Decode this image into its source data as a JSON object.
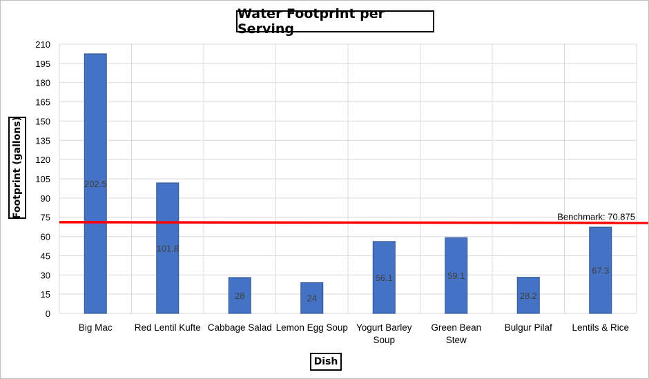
{
  "chart_data": {
    "type": "bar",
    "title": "Water Footprint per Serving",
    "xlabel": "Dish",
    "ylabel": "Footprint (gallons)",
    "categories": [
      "Big Mac",
      "Red Lentil Kufte",
      "Cabbage Salad",
      "Lemon Egg Soup",
      "Yogurt Barley Soup",
      "Green Bean Stew",
      "Bulgur Pilaf",
      "Lentils & Rice"
    ],
    "values": [
      202.5,
      101.8,
      28,
      24,
      56.1,
      59.1,
      28.2,
      67.3
    ],
    "data_labels": [
      "202.5",
      "101.8",
      "28",
      "24",
      "56.1",
      "59.1",
      "28.2",
      "67.3"
    ],
    "ylim": [
      0,
      210
    ],
    "yticks": [
      0,
      15,
      30,
      45,
      60,
      75,
      90,
      105,
      120,
      135,
      150,
      165,
      180,
      195,
      210
    ],
    "grid": true,
    "bar_color": "#4472c4",
    "benchmark": {
      "value": 70.875,
      "label": "Benchmark: 70.875",
      "color": "#ff0000"
    }
  }
}
